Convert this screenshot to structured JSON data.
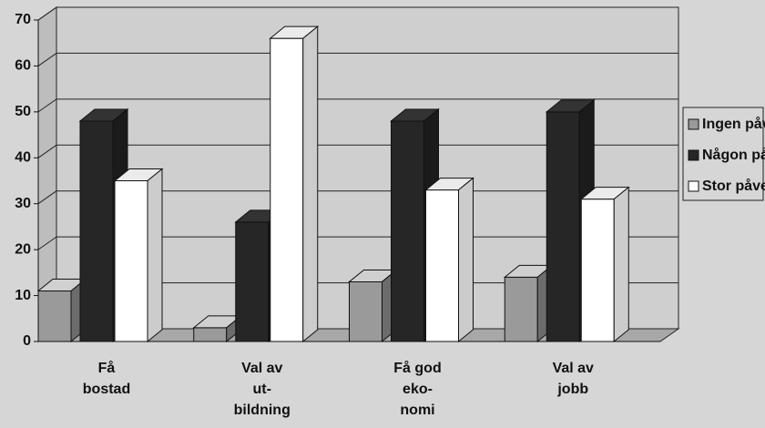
{
  "chart_data": {
    "type": "bar3d",
    "categories": [
      [
        "Få",
        "bostad"
      ],
      [
        "Val av",
        "ut-",
        "bildning"
      ],
      [
        "Få god",
        "eko-",
        "nomi"
      ],
      [
        "Val av",
        "jobb"
      ]
    ],
    "series": [
      {
        "name": "Ingen påverkan",
        "color": "#9a9a9a",
        "values": [
          11,
          3,
          13,
          14
        ]
      },
      {
        "name": "Någon påverkan",
        "color": "#262626",
        "values": [
          48,
          26,
          48,
          50
        ]
      },
      {
        "name": "Stor påverkan",
        "color": "#ffffff",
        "values": [
          35,
          66,
          33,
          31
        ]
      }
    ],
    "ylim": [
      0,
      70
    ],
    "yticks": [
      0,
      10,
      20,
      30,
      40,
      50,
      60,
      70
    ],
    "grid": true,
    "legend": "right"
  }
}
